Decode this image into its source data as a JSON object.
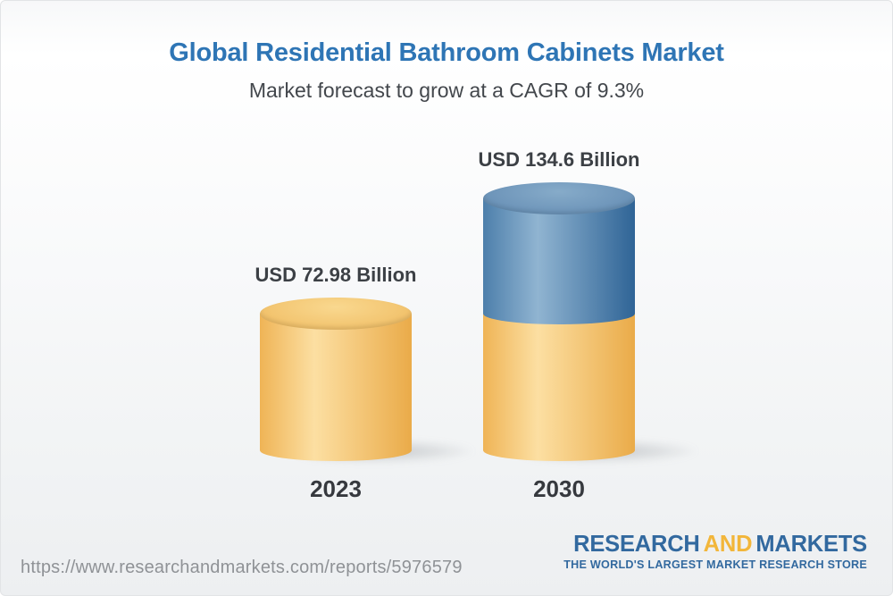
{
  "header": {
    "title": "Global Residential Bathroom Cabinets Market",
    "subtitle": "Market forecast to grow at a CAGR of 9.3%"
  },
  "chart_data": {
    "type": "bar",
    "variant": "3d-cylinder",
    "title": "Global Residential Bathroom Cabinets Market",
    "subtitle": "Market forecast to grow at a CAGR of 9.3%",
    "cagr_percent": 9.3,
    "unit": "USD Billion",
    "categories": [
      "2023",
      "2030"
    ],
    "values": [
      72.98,
      134.6
    ],
    "xlabel": "",
    "ylabel": "",
    "legend": "none",
    "grid": false,
    "bars": [
      {
        "category": "2023",
        "value": 72.98,
        "label": "USD 72.98 Billion",
        "segments": [
          {
            "name": "2023-base",
            "value": 72.98,
            "color": "base"
          }
        ]
      },
      {
        "category": "2030",
        "value": 134.6,
        "label": "USD 134.6 Billion",
        "segments": [
          {
            "name": "2030-base",
            "value": 72.98,
            "color": "base"
          },
          {
            "name": "2030-growth",
            "value": 61.62,
            "color": "growth"
          }
        ]
      }
    ],
    "colors": {
      "base": {
        "body_left": "#efb456",
        "body_light": "#fcdfa2",
        "body_right": "#eaab49",
        "cap_light": "#f9d88f",
        "cap_mid": "#f3c672",
        "cap_dark": "#eeb65a"
      },
      "growth": {
        "body_left": "#4d7fab",
        "body_light": "#90b4d1",
        "body_right": "#2f6496",
        "cap_light": "#86abc9",
        "cap_mid": "#7097bb",
        "cap_dark": "#5d88b0"
      }
    },
    "accent_colors": {
      "title_blue": "#2e75b5",
      "bar_yellow": "#f5c773",
      "bar_blue": "#5d88b0"
    }
  },
  "footer": {
    "url": "https://www.researchandmarkets.com/reports/5976579",
    "logo": {
      "part1": "RESEARCH",
      "part2": "AND",
      "part3": "MARKETS",
      "tagline": "THE WORLD'S LARGEST MARKET RESEARCH STORE"
    }
  }
}
